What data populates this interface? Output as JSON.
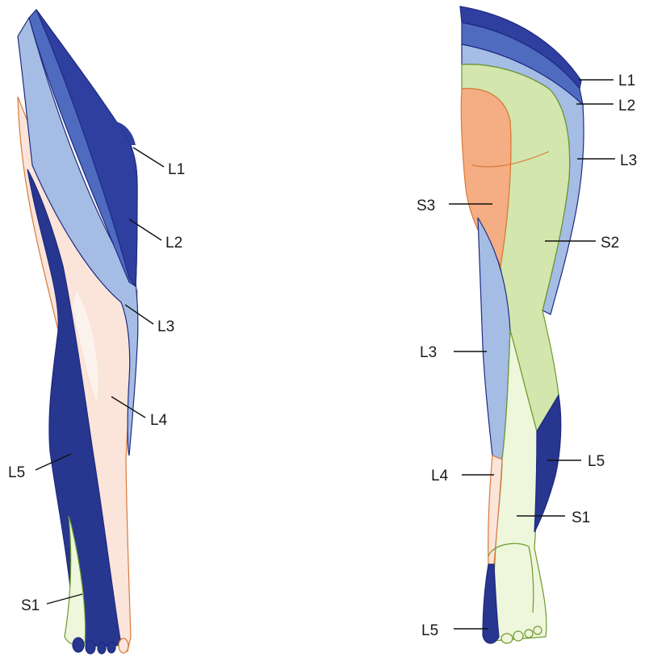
{
  "colors": {
    "l1": "#2f3fa0",
    "l2": "#4f6bc0",
    "l3": "#a5bde4",
    "l4": "#fbe4d9",
    "l5": "#27368f",
    "s1": "#eef6dc",
    "s2": "#d3e6ad",
    "s3": "#f5ad83",
    "outline": "#1f2a80"
  },
  "anterior": {
    "labels": {
      "l1": "L1",
      "l2": "L2",
      "l3": "L3",
      "l4": "L4",
      "l5": "L5",
      "s1": "S1"
    }
  },
  "posterior": {
    "labels": {
      "l1": "L1",
      "l2": "L2",
      "l3_outer": "L3",
      "s3": "S3",
      "s2": "S2",
      "l3_inner": "L3",
      "l4": "L4",
      "l5_calf": "L5",
      "s1": "S1",
      "l5_heel": "L5"
    }
  }
}
